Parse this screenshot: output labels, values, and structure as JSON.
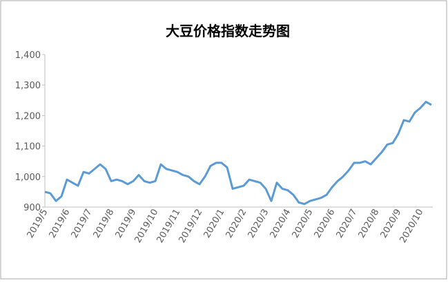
{
  "chart_data": {
    "type": "line",
    "title": "大豆价格指数走势图",
    "categories": [
      "2019/5",
      null,
      null,
      null,
      "2019/6",
      null,
      null,
      null,
      "2019/7",
      null,
      null,
      null,
      "2019/8",
      null,
      null,
      null,
      "2019/9",
      null,
      null,
      null,
      "2019/10",
      null,
      null,
      null,
      "2019/11",
      null,
      null,
      null,
      "2019/12",
      null,
      null,
      null,
      "2020/1",
      null,
      null,
      null,
      "2020/2",
      null,
      null,
      null,
      "2020/3",
      null,
      null,
      null,
      "2020/4",
      null,
      null,
      null,
      "2020/5",
      null,
      null,
      null,
      "2020/6",
      null,
      null,
      null,
      "2020/7",
      null,
      null,
      null,
      "2020/8",
      null,
      null,
      null,
      "2020/9",
      null,
      null,
      null,
      "2020/10",
      null,
      null
    ],
    "series": [
      {
        "color": "#5b9bd5",
        "values": [
          950,
          945,
          920,
          935,
          990,
          980,
          970,
          1015,
          1010,
          1025,
          1040,
          1025,
          985,
          990,
          985,
          975,
          985,
          1005,
          985,
          980,
          985,
          1040,
          1025,
          1020,
          1015,
          1005,
          1000,
          985,
          975,
          1000,
          1035,
          1045,
          1045,
          1030,
          960,
          965,
          970,
          990,
          985,
          980,
          960,
          920,
          980,
          960,
          955,
          940,
          915,
          910,
          920,
          925,
          930,
          940,
          965,
          985,
          1000,
          1020,
          1045,
          1045,
          1050,
          1040,
          1060,
          1080,
          1105,
          1110,
          1140,
          1185,
          1180,
          1210,
          1225,
          1245,
          1235
        ]
      }
    ],
    "ylim": [
      900,
      1400
    ],
    "yticks": [
      900,
      {
        "value": 1000,
        "label": "1,000"
      },
      {
        "value": 1100,
        "label": "1,100"
      },
      {
        "value": 1200,
        "label": "1,200"
      },
      {
        "value": 1300,
        "label": "1,300"
      },
      {
        "value": 1400,
        "label": "1,400"
      }
    ],
    "grid": false
  }
}
